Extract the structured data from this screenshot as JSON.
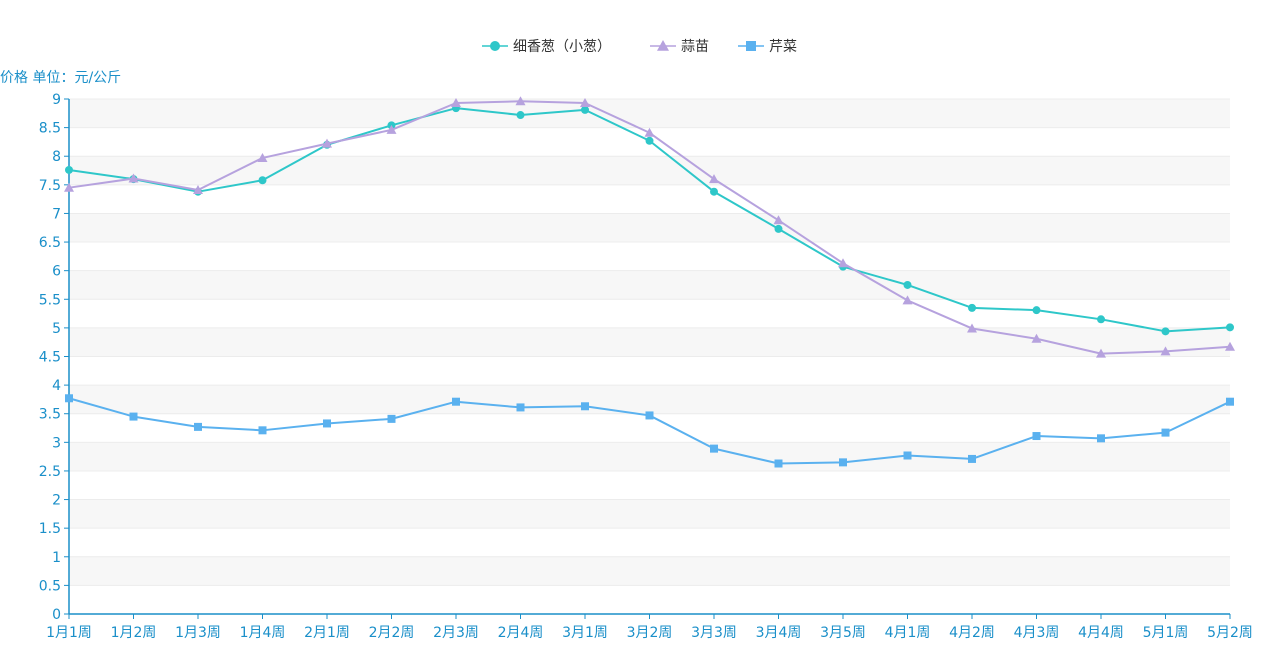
{
  "chart_data": {
    "type": "line",
    "title": "",
    "ylabel": "价格 单位：元/公斤",
    "xlabel": "",
    "ylim": [
      0,
      9
    ],
    "y_ticks": [
      "0",
      "0.5",
      "1",
      "1.5",
      "2",
      "2.5",
      "3",
      "3.5",
      "4",
      "4.5",
      "5",
      "5.5",
      "6",
      "6.5",
      "7",
      "7.5",
      "8",
      "8.5",
      "9"
    ],
    "categories": [
      "1月1周",
      "1月2周",
      "1月3周",
      "1月4周",
      "2月1周",
      "2月2周",
      "2月3周",
      "2月4周",
      "3月1周",
      "3月2周",
      "3月3周",
      "3月4周",
      "3月5周",
      "4月1周",
      "4月2周",
      "4月3周",
      "4月4周",
      "5月1周",
      "5月2周"
    ],
    "grid": "horizontal bands",
    "legend_position": "top-center",
    "series": [
      {
        "name": "细香葱（小葱）",
        "color": "#2ec7c9",
        "marker": "circle",
        "values": [
          7.76,
          7.6,
          7.38,
          7.58,
          8.2,
          8.54,
          8.84,
          8.72,
          8.81,
          8.27,
          7.38,
          6.73,
          6.07,
          5.75,
          5.35,
          5.31,
          5.15,
          4.94,
          5.01
        ]
      },
      {
        "name": "蒜苗",
        "color": "#b6a2de",
        "marker": "triangle",
        "values": [
          7.45,
          7.61,
          7.41,
          7.97,
          8.22,
          8.46,
          8.93,
          8.96,
          8.93,
          8.41,
          7.6,
          6.88,
          6.13,
          5.48,
          4.99,
          4.81,
          4.55,
          4.59,
          4.67
        ]
      },
      {
        "name": "芹菜",
        "color": "#5ab1ef",
        "marker": "square",
        "values": [
          3.77,
          3.45,
          3.27,
          3.21,
          3.33,
          3.41,
          3.71,
          3.61,
          3.63,
          3.47,
          2.89,
          2.63,
          2.65,
          2.77,
          2.71,
          3.11,
          3.07,
          3.17,
          3.71
        ]
      }
    ]
  }
}
